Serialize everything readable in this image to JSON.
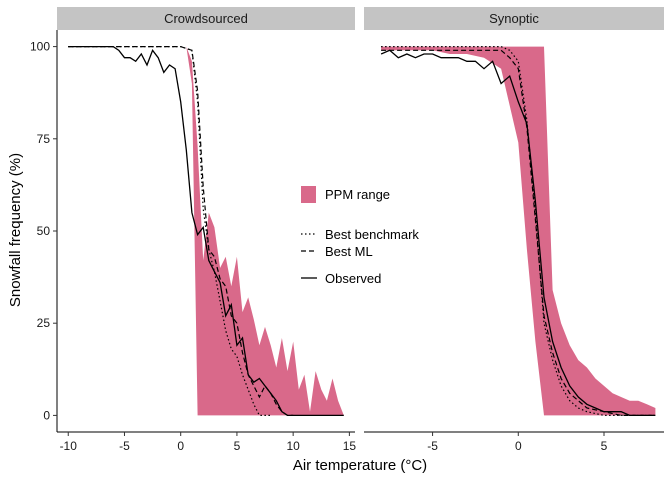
{
  "chart_data": {
    "type": "area",
    "xlabel": "Air temperature (°C)",
    "ylabel": "Snowfall frequency (%)",
    "ylim": [
      0,
      100
    ],
    "yticks": [
      "0",
      "25",
      "50",
      "75",
      "100"
    ],
    "xticks": [
      "-10",
      "-5",
      "0",
      "5",
      "10",
      "15"
    ],
    "xtick_values": [
      -10,
      -5,
      0,
      5,
      10,
      15
    ],
    "ytick_values": [
      0,
      25,
      50,
      75,
      100
    ],
    "legend": {
      "position": "center",
      "ribbon_label": "PPM range",
      "benchmark_label": "Best benchmark",
      "ml_label": "Best ML",
      "observed_label": "Observed"
    },
    "colors": {
      "ribbon": "#d9698a",
      "strip": "#c4c4c4",
      "line": "#000000"
    },
    "panels": [
      {
        "title": "Crowdsourced",
        "xlim": [
          -11,
          15.5
        ],
        "ribbon": {
          "x": [
            -10,
            -5,
            0,
            0.5,
            1,
            1.5,
            2,
            2.5,
            3,
            3.5,
            4,
            4.5,
            5,
            5.5,
            6,
            6.5,
            7,
            7.5,
            8,
            8.5,
            9,
            9.5,
            10,
            10.5,
            11,
            11.5,
            12,
            12.5,
            13,
            13.5,
            14,
            14.5
          ],
          "upper": [
            100,
            100,
            100,
            100,
            96,
            73,
            42,
            55,
            51,
            40,
            43,
            35,
            43,
            28,
            32,
            26,
            19,
            24,
            19,
            13,
            21,
            12,
            20,
            7,
            11,
            1,
            12,
            7,
            4,
            10,
            4,
            0
          ],
          "lower": [
            100,
            100,
            100,
            100,
            90,
            0,
            0,
            0,
            0,
            0,
            0,
            0,
            0,
            0,
            0,
            0,
            0,
            0,
            0,
            0,
            0,
            0,
            0,
            0,
            0,
            0,
            0,
            0,
            0,
            0,
            0,
            0
          ]
        },
        "series": [
          {
            "name": "Best benchmark",
            "x": [
              -10,
              0,
              1,
              1.5,
              2,
              2.5,
              3,
              3.5,
              4,
              4.5,
              5,
              5.5,
              6,
              6.5,
              7,
              7.5,
              8
            ],
            "y": [
              100,
              100,
              99,
              85,
              56,
              45,
              39,
              31,
              23,
              18,
              16,
              11,
              7,
              3,
              0,
              0,
              0
            ]
          },
          {
            "name": "Best ML",
            "x": [
              -10,
              0,
              1,
              1.5,
              2,
              2.5,
              3,
              3.5,
              4,
              4.5,
              5,
              5.5,
              6,
              6.5,
              7,
              7.5,
              8,
              8.5,
              9,
              9.5,
              10
            ],
            "y": [
              100,
              100,
              99,
              88,
              62,
              45,
              43,
              37,
              35,
              27,
              25,
              17,
              11,
              8,
              5,
              8,
              6,
              3,
              1,
              0,
              0
            ]
          },
          {
            "name": "Observed",
            "x": [
              -10,
              -6,
              -5.5,
              -5,
              -4.5,
              -4,
              -3.5,
              -3,
              -2.5,
              -2,
              -1.5,
              -1,
              -0.5,
              0,
              0.5,
              1,
              1.5,
              2,
              2.5,
              3,
              3.5,
              4,
              4.5,
              5,
              5.5,
              6,
              6.5,
              7,
              7.5,
              8,
              8.5,
              9,
              9.5,
              10,
              10.5,
              11,
              11.5,
              12,
              12.5,
              13,
              13.5,
              14,
              14.5
            ],
            "y": [
              100,
              100,
              99,
              97,
              97,
              96,
              98,
              95,
              99,
              97,
              93,
              95,
              94,
              85,
              72,
              55,
              49,
              51,
              42,
              39,
              36,
              27,
              30,
              19,
              21,
              11,
              9,
              10,
              8,
              6,
              4,
              1,
              0,
              0,
              0,
              0,
              0,
              0,
              0,
              0,
              0,
              0,
              0
            ]
          }
        ]
      },
      {
        "title": "Synoptic",
        "xlim": [
          -9,
          8.5
        ],
        "ribbon": {
          "x": [
            -8,
            -7,
            -6,
            -5,
            -4,
            -3,
            -2,
            -1,
            0,
            0.5,
            1,
            1.5,
            2,
            2.5,
            3,
            3.5,
            4,
            4.5,
            5,
            5.5,
            6,
            6.5,
            7,
            7.5,
            8
          ],
          "upper": [
            100,
            100,
            100,
            100,
            100,
            100,
            100,
            100,
            100,
            100,
            100,
            100,
            34,
            25,
            19,
            15,
            13,
            10,
            8,
            6,
            5,
            4,
            4,
            3,
            2
          ],
          "lower": [
            99,
            99,
            99,
            99,
            98,
            98,
            97,
            94,
            74,
            45,
            20,
            0,
            0,
            0,
            0,
            0,
            0,
            0,
            0,
            0,
            0,
            0,
            0,
            0,
            0
          ]
        },
        "series": [
          {
            "name": "Best benchmark",
            "x": [
              -8,
              -5,
              -2,
              -1,
              -0.5,
              0,
              0.5,
              1,
              1.5,
              2,
              2.5,
              3,
              3.5,
              4,
              5,
              6,
              7,
              8
            ],
            "y": [
              100,
              100,
              100,
              100,
              99,
              96,
              80,
              55,
              25,
              15,
              8,
              4,
              2,
              1,
              0,
              0,
              0,
              0
            ]
          },
          {
            "name": "Best ML",
            "x": [
              -8,
              -5,
              -2,
              -1,
              -0.5,
              0,
              0.5,
              1,
              1.5,
              2,
              2.5,
              3,
              3.5,
              4,
              5,
              6,
              7,
              8
            ],
            "y": [
              99,
              99,
              99,
              99,
              97,
              94,
              78,
              53,
              27,
              17,
              10,
              6,
              4,
              2,
              1,
              0,
              0,
              0
            ]
          },
          {
            "name": "Observed",
            "x": [
              -8,
              -7.5,
              -7,
              -6.5,
              -6,
              -5.5,
              -5,
              -4.5,
              -4,
              -3.5,
              -3,
              -2.5,
              -2,
              -1.5,
              -1,
              -0.5,
              0,
              0.5,
              1,
              1.5,
              2,
              2.5,
              3,
              3.5,
              4,
              4.5,
              5,
              5.5,
              6,
              6.5,
              7,
              7.5,
              8
            ],
            "y": [
              98,
              99,
              97,
              98,
              97,
              98,
              98,
              97,
              97,
              97,
              96,
              96,
              94,
              96,
              90,
              92,
              85,
              79,
              58,
              32,
              20,
              13,
              8,
              5,
              3,
              2,
              1,
              1,
              1,
              0,
              0,
              0,
              0
            ]
          }
        ]
      }
    ]
  }
}
